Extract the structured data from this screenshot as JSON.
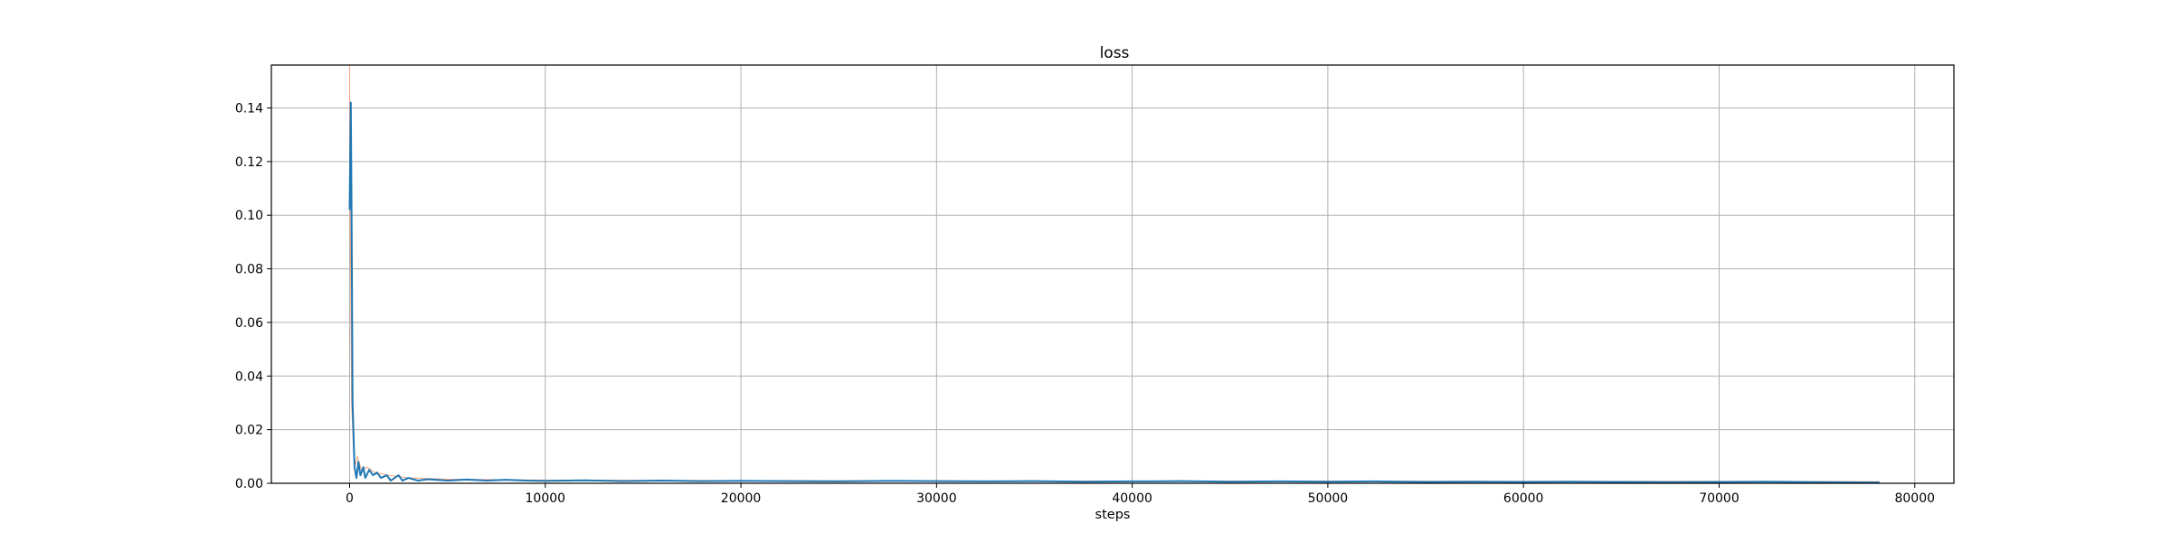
{
  "chart_data": {
    "type": "line",
    "title": "loss",
    "xlabel": "steps",
    "ylabel": "",
    "xlim": [
      -4000,
      82000
    ],
    "ylim": [
      0,
      0.156
    ],
    "xticks": [
      0,
      10000,
      20000,
      30000,
      40000,
      50000,
      60000,
      70000,
      80000
    ],
    "xtick_labels": [
      "0",
      "10000",
      "20000",
      "30000",
      "40000",
      "50000",
      "60000",
      "70000",
      "80000"
    ],
    "yticks": [
      0.0,
      0.02,
      0.04,
      0.06,
      0.08,
      0.1,
      0.12,
      0.14
    ],
    "ytick_labels": [
      "0.00",
      "0.02",
      "0.04",
      "0.06",
      "0.08",
      "0.10",
      "0.12",
      "0.14"
    ],
    "grid": true,
    "series": [
      {
        "color": "#f4a582",
        "x": [
          0,
          0,
          50,
          100,
          200,
          300,
          400,
          600,
          900,
          1300,
          2000,
          3000,
          5000,
          10000,
          20000,
          30000,
          40000,
          50000,
          60000,
          70000,
          78200
        ],
        "y": [
          0.156,
          0.125,
          0.08,
          0.03,
          0.012,
          0.007,
          0.01,
          0.005,
          0.006,
          0.004,
          0.003,
          0.002,
          0.0015,
          0.0012,
          0.001,
          0.0009,
          0.0008,
          0.0008,
          0.0007,
          0.0007,
          0.0006
        ]
      },
      {
        "color": "#1f77b4",
        "x": [
          0,
          60,
          100,
          150,
          250,
          350,
          450,
          550,
          700,
          800,
          1000,
          1200,
          1400,
          1600,
          1900,
          2100,
          2300,
          2500,
          2700,
          3000,
          3500,
          4000,
          5000,
          6000,
          7000,
          8000,
          9000,
          10000,
          12000,
          14000,
          16000,
          18000,
          20000,
          22500,
          25000,
          27500,
          30000,
          32500,
          35000,
          37500,
          40000,
          42500,
          45000,
          47500,
          50000,
          52500,
          55000,
          57500,
          60000,
          62500,
          65000,
          67500,
          70000,
          72500,
          75000,
          78200
        ],
        "y": [
          0.102,
          0.142,
          0.1,
          0.03,
          0.006,
          0.002,
          0.008,
          0.003,
          0.006,
          0.002,
          0.005,
          0.003,
          0.004,
          0.002,
          0.003,
          0.001,
          0.002,
          0.003,
          0.001,
          0.002,
          0.001,
          0.0015,
          0.001,
          0.0014,
          0.001,
          0.0013,
          0.001,
          0.0009,
          0.0011,
          0.0008,
          0.001,
          0.0008,
          0.0009,
          0.0008,
          0.0007,
          0.0009,
          0.0008,
          0.0007,
          0.0008,
          0.0006,
          0.0007,
          0.0008,
          0.0006,
          0.0007,
          0.0006,
          0.0007,
          0.0005,
          0.0006,
          0.0005,
          0.0006,
          0.0005,
          0.0004,
          0.0005,
          0.0006,
          0.0004,
          0.0003
        ]
      }
    ]
  }
}
